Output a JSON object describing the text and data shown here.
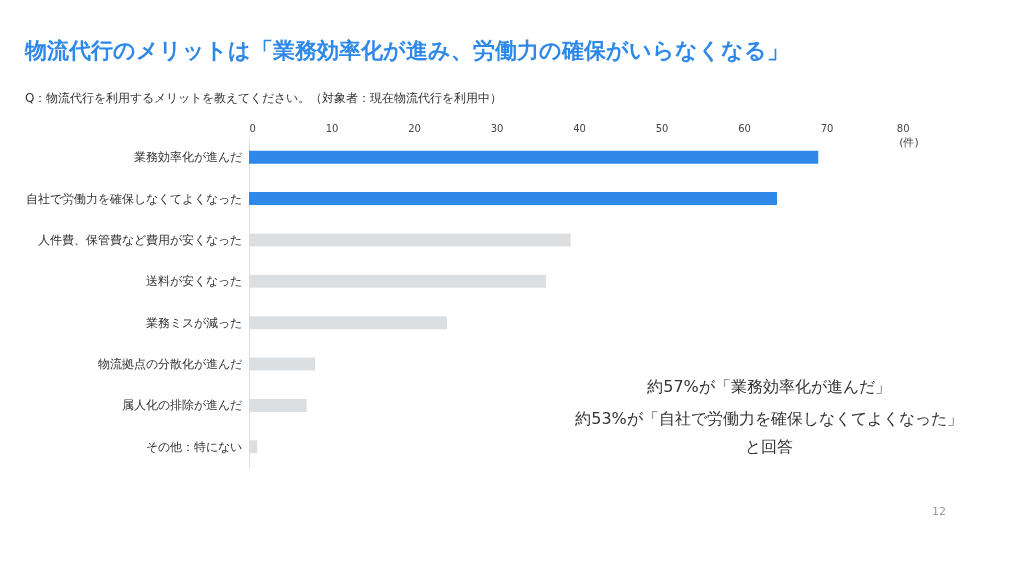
{
  "chart_data": {
    "type": "bar",
    "orientation": "horizontal",
    "title": "物流代行のメリットは「業務効率化が進み、労働力の確保がいらなくなる」",
    "subtitle": "Q：物流代行を利用するメリットを教えてください。（対象者：現在物流代行を利用中）",
    "xlabel": "(件)",
    "categories": [
      "業務効率化が進んだ",
      "自社で労働力を確保しなくてよくなった",
      "人件費、保管費など費用が安くなった",
      "送料が安くなった",
      "業務ミスが減った",
      "物流拠点の分散化が進んだ",
      "属人化の排除が進んだ",
      "その他：特にない"
    ],
    "values": [
      69,
      64,
      39,
      36,
      24,
      8,
      7,
      1
    ],
    "colors": [
      "#2e88e8",
      "#2e88e8",
      "#dcdfe2",
      "#dcdfe2",
      "#dcdfe2",
      "#dcdfe2",
      "#dcdfe2",
      "#dcdfe2"
    ],
    "xlim": [
      0,
      80
    ],
    "xticks": [
      0,
      10,
      20,
      30,
      40,
      50,
      60,
      70,
      80
    ],
    "grid": false,
    "annotations": [
      "約57%が「業務効率化が進んだ」",
      "約53%が「自社で労働力を確保しなくてよくなった」",
      "と回答",
      "12"
    ]
  }
}
